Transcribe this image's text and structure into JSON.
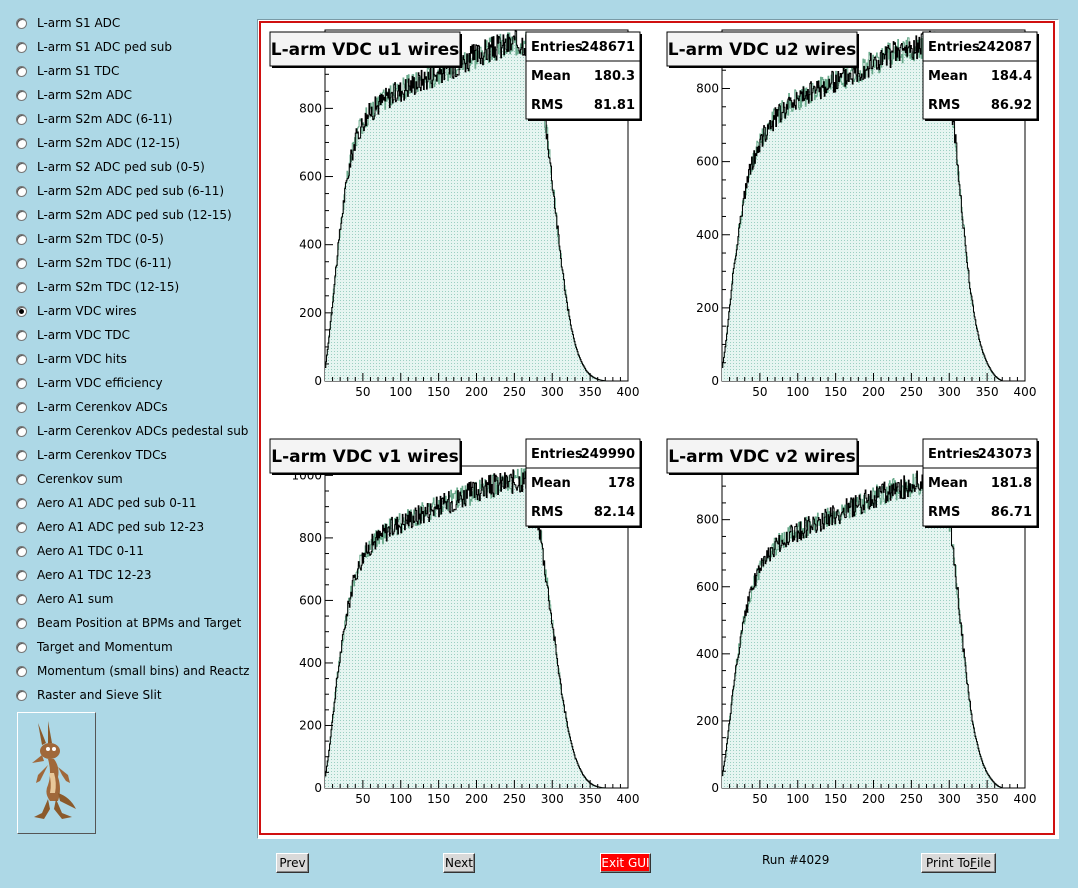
{
  "sidebar": {
    "items": [
      {
        "label": "L-arm S1 ADC",
        "checked": false
      },
      {
        "label": "L-arm S1 ADC ped sub",
        "checked": false
      },
      {
        "label": "L-arm S1 TDC",
        "checked": false
      },
      {
        "label": "L-arm S2m ADC",
        "checked": false
      },
      {
        "label": "L-arm S2m ADC (6-11)",
        "checked": false
      },
      {
        "label": "L-arm S2m ADC (12-15)",
        "checked": false
      },
      {
        "label": "L-arm S2 ADC ped sub (0-5)",
        "checked": false
      },
      {
        "label": "L-arm S2m ADC ped sub (6-11)",
        "checked": false
      },
      {
        "label": "L-arm S2m ADC ped sub (12-15)",
        "checked": false
      },
      {
        "label": "L-arm S2m TDC (0-5)",
        "checked": false
      },
      {
        "label": "L-arm S2m TDC (6-11)",
        "checked": false
      },
      {
        "label": "L-arm S2m TDC (12-15)",
        "checked": false
      },
      {
        "label": "L-arm VDC wires",
        "checked": true
      },
      {
        "label": "L-arm VDC TDC",
        "checked": false
      },
      {
        "label": "L-arm VDC hits",
        "checked": false
      },
      {
        "label": "L-arm VDC efficiency",
        "checked": false
      },
      {
        "label": "L-arm Cerenkov ADCs",
        "checked": false
      },
      {
        "label": "L-arm Cerenkov ADCs pedestal sub",
        "checked": false
      },
      {
        "label": "L-arm Cerenkov TDCs",
        "checked": false
      },
      {
        "label": "Cerenkov sum",
        "checked": false
      },
      {
        "label": "Aero A1 ADC ped sub 0-11",
        "checked": false
      },
      {
        "label": "Aero A1 ADC ped sub 12-23",
        "checked": false
      },
      {
        "label": "Aero A1 TDC 0-11",
        "checked": false
      },
      {
        "label": "Aero A1 TDC 12-23",
        "checked": false
      },
      {
        "label": "Aero A1 sum",
        "checked": false
      },
      {
        "label": "Beam Position at BPMs and Target",
        "checked": false
      },
      {
        "label": "Target and Momentum",
        "checked": false
      },
      {
        "label": "Momentum (small bins) and Reactz",
        "checked": false
      },
      {
        "label": "Raster and Sieve Slit",
        "checked": false
      }
    ],
    "logo_icon": "coyote-logo-icon"
  },
  "footer": {
    "prev_label": "Prev",
    "next_label": "Next",
    "exit_label": "Exit GUI",
    "run_label": "Run #4029",
    "print_label_pre": "Print To ",
    "print_label_key": "F",
    "print_label_post": "ile"
  },
  "colors": {
    "background": "#add8e6",
    "fill": "#ccece6",
    "line": "#000000",
    "reference_line": "#6aaa8c",
    "canvas_border": "#d01010",
    "exit_button": "#ff0000"
  },
  "stats_labels": {
    "entries": "Entries",
    "mean": "Mean",
    "rms": "RMS"
  },
  "chart_data": [
    {
      "type": "histogram",
      "title": "L-arm VDC u1 wires",
      "stats": {
        "entries": "248671",
        "mean": "180.3",
        "rms": "81.81"
      },
      "xlim": [
        0,
        400
      ],
      "ylim": [
        0,
        1030
      ],
      "xticks": [
        50,
        100,
        150,
        200,
        250,
        300,
        350,
        400
      ],
      "yticks": [
        0,
        200,
        400,
        600,
        800,
        1000
      ],
      "xtick_labels": [
        "50",
        "100",
        "150",
        "200",
        "250",
        "300",
        "350",
        "400"
      ],
      "ytick_labels": [
        "0",
        "200",
        "400",
        "600",
        "800",
        "1000"
      ],
      "profile": [
        [
          0,
          30
        ],
        [
          5,
          120
        ],
        [
          10,
          230
        ],
        [
          15,
          340
        ],
        [
          20,
          440
        ],
        [
          25,
          530
        ],
        [
          30,
          600
        ],
        [
          35,
          660
        ],
        [
          40,
          705
        ],
        [
          50,
          760
        ],
        [
          60,
          790
        ],
        [
          70,
          810
        ],
        [
          80,
          830
        ],
        [
          90,
          840
        ],
        [
          100,
          852
        ],
        [
          110,
          865
        ],
        [
          120,
          875
        ],
        [
          130,
          885
        ],
        [
          140,
          895
        ],
        [
          150,
          905
        ],
        [
          160,
          915
        ],
        [
          170,
          925
        ],
        [
          180,
          935
        ],
        [
          190,
          945
        ],
        [
          200,
          955
        ],
        [
          210,
          965
        ],
        [
          220,
          972
        ],
        [
          230,
          980
        ],
        [
          240,
          985
        ],
        [
          250,
          990
        ],
        [
          260,
          995
        ],
        [
          270,
          990
        ],
        [
          275,
          960
        ],
        [
          280,
          920
        ],
        [
          285,
          860
        ],
        [
          290,
          780
        ],
        [
          295,
          690
        ],
        [
          300,
          590
        ],
        [
          305,
          490
        ],
        [
          310,
          390
        ],
        [
          315,
          300
        ],
        [
          320,
          220
        ],
        [
          325,
          160
        ],
        [
          330,
          110
        ],
        [
          335,
          75
        ],
        [
          340,
          50
        ],
        [
          345,
          30
        ],
        [
          350,
          18
        ],
        [
          355,
          10
        ],
        [
          360,
          5
        ],
        [
          365,
          2
        ],
        [
          370,
          0
        ]
      ]
    },
    {
      "type": "histogram",
      "title": "L-arm VDC u2 wires",
      "stats": {
        "entries": "242087",
        "mean": "184.4",
        "rms": "86.92"
      },
      "xlim": [
        0,
        400
      ],
      "ylim": [
        0,
        960
      ],
      "xticks": [
        50,
        100,
        150,
        200,
        250,
        300,
        350,
        400
      ],
      "yticks": [
        0,
        200,
        400,
        600,
        800
      ],
      "xtick_labels": [
        "50",
        "100",
        "150",
        "200",
        "250",
        "300",
        "350",
        "400"
      ],
      "ytick_labels": [
        "0",
        "200",
        "400",
        "600",
        "800"
      ],
      "profile": [
        [
          0,
          30
        ],
        [
          5,
          100
        ],
        [
          10,
          200
        ],
        [
          15,
          300
        ],
        [
          20,
          380
        ],
        [
          25,
          450
        ],
        [
          30,
          510
        ],
        [
          35,
          560
        ],
        [
          40,
          600
        ],
        [
          50,
          650
        ],
        [
          60,
          690
        ],
        [
          70,
          720
        ],
        [
          80,
          740
        ],
        [
          90,
          760
        ],
        [
          100,
          770
        ],
        [
          110,
          780
        ],
        [
          120,
          790
        ],
        [
          130,
          800
        ],
        [
          140,
          810
        ],
        [
          150,
          820
        ],
        [
          160,
          830
        ],
        [
          170,
          840
        ],
        [
          180,
          850
        ],
        [
          190,
          860
        ],
        [
          200,
          870
        ],
        [
          210,
          880
        ],
        [
          220,
          890
        ],
        [
          230,
          900
        ],
        [
          240,
          905
        ],
        [
          250,
          910
        ],
        [
          260,
          915
        ],
        [
          270,
          920
        ],
        [
          280,
          920
        ],
        [
          290,
          910
        ],
        [
          295,
          870
        ],
        [
          300,
          800
        ],
        [
          305,
          720
        ],
        [
          310,
          620
        ],
        [
          315,
          510
        ],
        [
          320,
          400
        ],
        [
          325,
          300
        ],
        [
          330,
          220
        ],
        [
          335,
          160
        ],
        [
          340,
          110
        ],
        [
          345,
          75
        ],
        [
          350,
          50
        ],
        [
          355,
          30
        ],
        [
          360,
          15
        ],
        [
          365,
          6
        ],
        [
          370,
          0
        ]
      ]
    },
    {
      "type": "histogram",
      "title": "L-arm VDC v1 wires",
      "stats": {
        "entries": "249990",
        "mean": "178",
        "rms": "82.14"
      },
      "xlim": [
        0,
        400
      ],
      "ylim": [
        0,
        1030
      ],
      "xticks": [
        50,
        100,
        150,
        200,
        250,
        300,
        350,
        400
      ],
      "yticks": [
        0,
        200,
        400,
        600,
        800,
        1000
      ],
      "xtick_labels": [
        "50",
        "100",
        "150",
        "200",
        "250",
        "300",
        "350",
        "400"
      ],
      "ytick_labels": [
        "0",
        "200",
        "400",
        "600",
        "800",
        "1000"
      ],
      "profile": [
        [
          0,
          30
        ],
        [
          5,
          110
        ],
        [
          10,
          220
        ],
        [
          15,
          330
        ],
        [
          20,
          420
        ],
        [
          25,
          500
        ],
        [
          30,
          570
        ],
        [
          35,
          630
        ],
        [
          40,
          680
        ],
        [
          50,
          740
        ],
        [
          60,
          775
        ],
        [
          70,
          800
        ],
        [
          80,
          820
        ],
        [
          90,
          835
        ],
        [
          100,
          848
        ],
        [
          110,
          860
        ],
        [
          120,
          870
        ],
        [
          130,
          880
        ],
        [
          140,
          890
        ],
        [
          150,
          900
        ],
        [
          160,
          910
        ],
        [
          170,
          920
        ],
        [
          180,
          930
        ],
        [
          190,
          940
        ],
        [
          200,
          950
        ],
        [
          210,
          958
        ],
        [
          220,
          965
        ],
        [
          230,
          972
        ],
        [
          240,
          978
        ],
        [
          250,
          983
        ],
        [
          260,
          985
        ],
        [
          270,
          980
        ],
        [
          275,
          940
        ],
        [
          280,
          880
        ],
        [
          285,
          800
        ],
        [
          290,
          710
        ],
        [
          295,
          620
        ],
        [
          300,
          530
        ],
        [
          305,
          440
        ],
        [
          310,
          350
        ],
        [
          315,
          270
        ],
        [
          320,
          200
        ],
        [
          325,
          145
        ],
        [
          330,
          100
        ],
        [
          335,
          70
        ],
        [
          340,
          45
        ],
        [
          345,
          28
        ],
        [
          350,
          16
        ],
        [
          355,
          8
        ],
        [
          360,
          4
        ],
        [
          365,
          1
        ],
        [
          370,
          0
        ]
      ]
    },
    {
      "type": "histogram",
      "title": "L-arm VDC v2 wires",
      "stats": {
        "entries": "243073",
        "mean": "181.8",
        "rms": "86.71"
      },
      "xlim": [
        0,
        400
      ],
      "ylim": [
        0,
        960
      ],
      "xticks": [
        50,
        100,
        150,
        200,
        250,
        300,
        350,
        400
      ],
      "yticks": [
        0,
        200,
        400,
        600,
        800
      ],
      "xtick_labels": [
        "50",
        "100",
        "150",
        "200",
        "250",
        "300",
        "350",
        "400"
      ],
      "ytick_labels": [
        "0",
        "200",
        "400",
        "600",
        "800"
      ],
      "profile": [
        [
          0,
          30
        ],
        [
          5,
          100
        ],
        [
          10,
          200
        ],
        [
          15,
          300
        ],
        [
          20,
          380
        ],
        [
          25,
          450
        ],
        [
          30,
          510
        ],
        [
          35,
          560
        ],
        [
          40,
          600
        ],
        [
          50,
          650
        ],
        [
          60,
          690
        ],
        [
          70,
          720
        ],
        [
          80,
          740
        ],
        [
          90,
          755
        ],
        [
          100,
          765
        ],
        [
          110,
          775
        ],
        [
          120,
          785
        ],
        [
          130,
          795
        ],
        [
          140,
          805
        ],
        [
          150,
          815
        ],
        [
          160,
          825
        ],
        [
          170,
          835
        ],
        [
          180,
          845
        ],
        [
          190,
          855
        ],
        [
          200,
          865
        ],
        [
          210,
          875
        ],
        [
          220,
          885
        ],
        [
          230,
          892
        ],
        [
          240,
          898
        ],
        [
          250,
          905
        ],
        [
          260,
          910
        ],
        [
          270,
          915
        ],
        [
          280,
          915
        ],
        [
          290,
          900
        ],
        [
          295,
          860
        ],
        [
          300,
          790
        ],
        [
          305,
          710
        ],
        [
          310,
          610
        ],
        [
          315,
          500
        ],
        [
          320,
          390
        ],
        [
          325,
          290
        ],
        [
          330,
          210
        ],
        [
          335,
          150
        ],
        [
          340,
          105
        ],
        [
          345,
          70
        ],
        [
          350,
          45
        ],
        [
          355,
          28
        ],
        [
          360,
          14
        ],
        [
          365,
          5
        ],
        [
          370,
          0
        ]
      ]
    }
  ]
}
